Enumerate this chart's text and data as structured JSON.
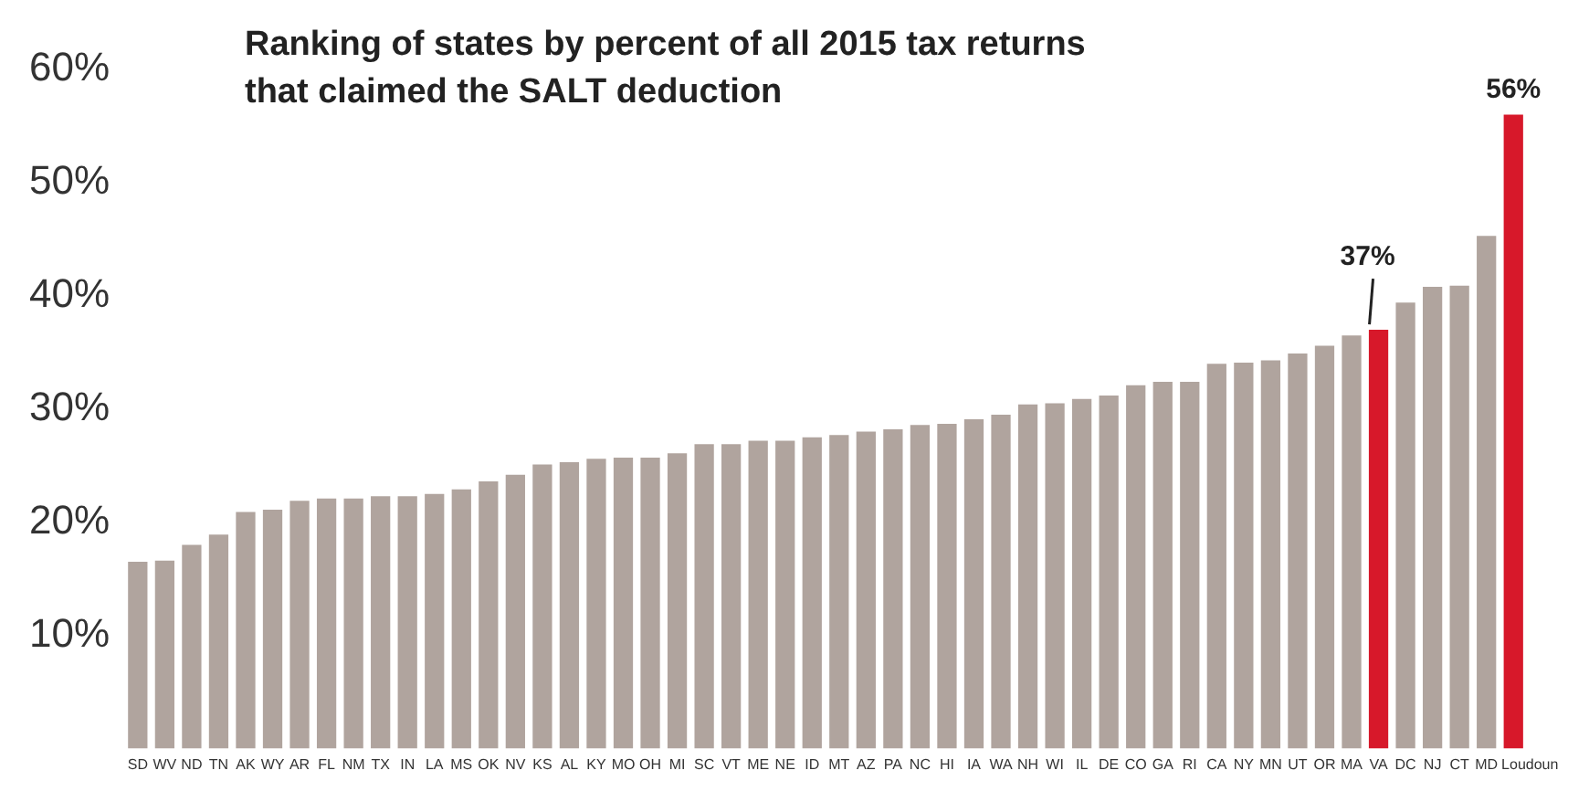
{
  "chart_data": {
    "type": "bar",
    "title": "Ranking of states by percent of all 2015 tax returns\nthat claimed the SALT deduction",
    "categories": [
      "SD",
      "WV",
      "ND",
      "TN",
      "AK",
      "WY",
      "AR",
      "FL",
      "NM",
      "TX",
      "IN",
      "LA",
      "MS",
      "OK",
      "NV",
      "KS",
      "AL",
      "KY",
      "MO",
      "OH",
      "MI",
      "SC",
      "VT",
      "ME",
      "NE",
      "ID",
      "MT",
      "AZ",
      "PA",
      "NC",
      "HI",
      "IA",
      "WA",
      "NH",
      "WI",
      "IL",
      "DE",
      "CO",
      "GA",
      "RI",
      "CA",
      "NY",
      "MN",
      "UT",
      "OR",
      "MA",
      "VA",
      "DC",
      "NJ",
      "CT",
      "MD",
      "Loudoun"
    ],
    "values": [
      16.5,
      16.6,
      18.0,
      18.9,
      20.9,
      21.1,
      21.9,
      22.1,
      22.1,
      22.3,
      22.3,
      22.5,
      22.9,
      23.6,
      24.2,
      25.1,
      25.3,
      25.6,
      25.7,
      25.7,
      26.1,
      26.9,
      26.9,
      27.2,
      27.2,
      27.5,
      27.7,
      28.0,
      28.2,
      28.6,
      28.7,
      29.1,
      29.5,
      30.4,
      30.5,
      30.9,
      31.2,
      32.1,
      32.4,
      32.4,
      34.0,
      34.1,
      34.3,
      34.9,
      35.6,
      36.5,
      37,
      39.4,
      40.8,
      40.9,
      45.3,
      56
    ],
    "colors": [
      "#b0a49e",
      "#b0a49e",
      "#b0a49e",
      "#b0a49e",
      "#b0a49e",
      "#b0a49e",
      "#b0a49e",
      "#b0a49e",
      "#b0a49e",
      "#b0a49e",
      "#b0a49e",
      "#b0a49e",
      "#b0a49e",
      "#b0a49e",
      "#b0a49e",
      "#b0a49e",
      "#b0a49e",
      "#b0a49e",
      "#b0a49e",
      "#b0a49e",
      "#b0a49e",
      "#b0a49e",
      "#b0a49e",
      "#b0a49e",
      "#b0a49e",
      "#b0a49e",
      "#b0a49e",
      "#b0a49e",
      "#b0a49e",
      "#b0a49e",
      "#b0a49e",
      "#b0a49e",
      "#b0a49e",
      "#b0a49e",
      "#b0a49e",
      "#b0a49e",
      "#b0a49e",
      "#b0a49e",
      "#b0a49e",
      "#b0a49e",
      "#b0a49e",
      "#b0a49e",
      "#b0a49e",
      "#b0a49e",
      "#b0a49e",
      "#b0a49e",
      "#d7182a",
      "#b0a49e",
      "#b0a49e",
      "#b0a49e",
      "#b0a49e",
      "#d7182a"
    ],
    "value_labels": [
      null,
      null,
      null,
      null,
      null,
      null,
      null,
      null,
      null,
      null,
      null,
      null,
      null,
      null,
      null,
      null,
      null,
      null,
      null,
      null,
      null,
      null,
      null,
      null,
      null,
      null,
      null,
      null,
      null,
      null,
      null,
      null,
      null,
      null,
      null,
      null,
      null,
      null,
      null,
      null,
      null,
      null,
      null,
      null,
      null,
      null,
      "37%",
      null,
      null,
      null,
      null,
      "56%"
    ],
    "ylim": [
      0,
      60
    ],
    "yticks": [
      {
        "value": 10,
        "label": "10%"
      },
      {
        "value": 20,
        "label": "20%"
      },
      {
        "value": 30,
        "label": "30%"
      },
      {
        "value": 40,
        "label": "40%"
      },
      {
        "value": 50,
        "label": "50%"
      },
      {
        "value": 60,
        "label": "60%"
      }
    ],
    "grid": false,
    "legend": false
  }
}
